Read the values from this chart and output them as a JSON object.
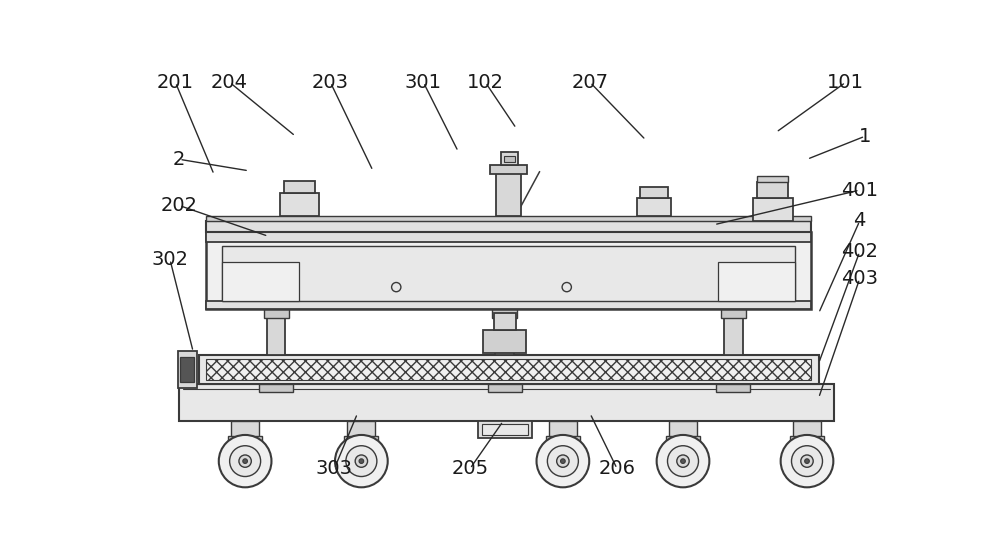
{
  "bg_color": "#ffffff",
  "line_color": "#3a3a3a",
  "fill_light": "#f0f0f0",
  "fill_mid": "#e0e0e0",
  "fill_dark": "#c8c8c8",
  "fill_darker": "#b0b0b0"
}
